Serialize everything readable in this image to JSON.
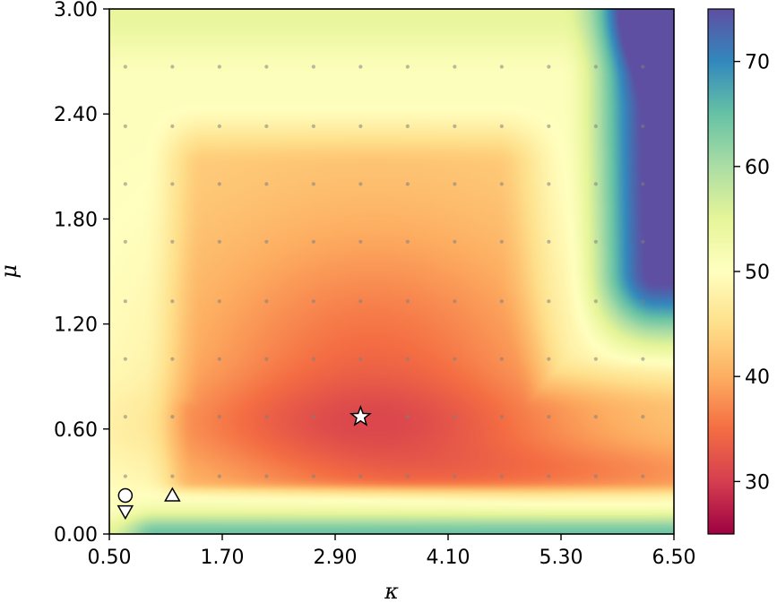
{
  "chart_data": {
    "type": "heatmap",
    "title": "",
    "xlabel": "κ",
    "ylabel": "μ",
    "xlim": [
      0.5,
      6.5
    ],
    "ylim": [
      0.0,
      3.0
    ],
    "x_ticks": [
      "0.50",
      "1.70",
      "2.90",
      "4.10",
      "5.30",
      "6.50"
    ],
    "y_ticks": [
      "0.00",
      "0.60",
      "1.20",
      "1.80",
      "2.40",
      "3.00"
    ],
    "colormap": "Spectral",
    "colorbar": {
      "range": [
        25,
        75
      ],
      "ticks": [
        "30",
        "40",
        "50",
        "60",
        "70"
      ]
    },
    "sample_grid": {
      "x": [
        0.67,
        1.17,
        1.67,
        2.17,
        2.67,
        3.17,
        3.67,
        4.17,
        4.67,
        5.17,
        5.67,
        6.17
      ],
      "y": [
        0.33,
        0.67,
        1.0,
        1.33,
        1.67,
        2.0,
        2.33,
        2.67
      ]
    },
    "markers": [
      {
        "shape": "star",
        "x": 3.17,
        "y": 0.67
      },
      {
        "shape": "circle",
        "x": 0.67,
        "y": 0.22
      },
      {
        "shape": "triangle-down",
        "x": 0.67,
        "y": 0.13
      },
      {
        "shape": "triangle-up",
        "x": 1.17,
        "y": 0.22
      }
    ]
  }
}
